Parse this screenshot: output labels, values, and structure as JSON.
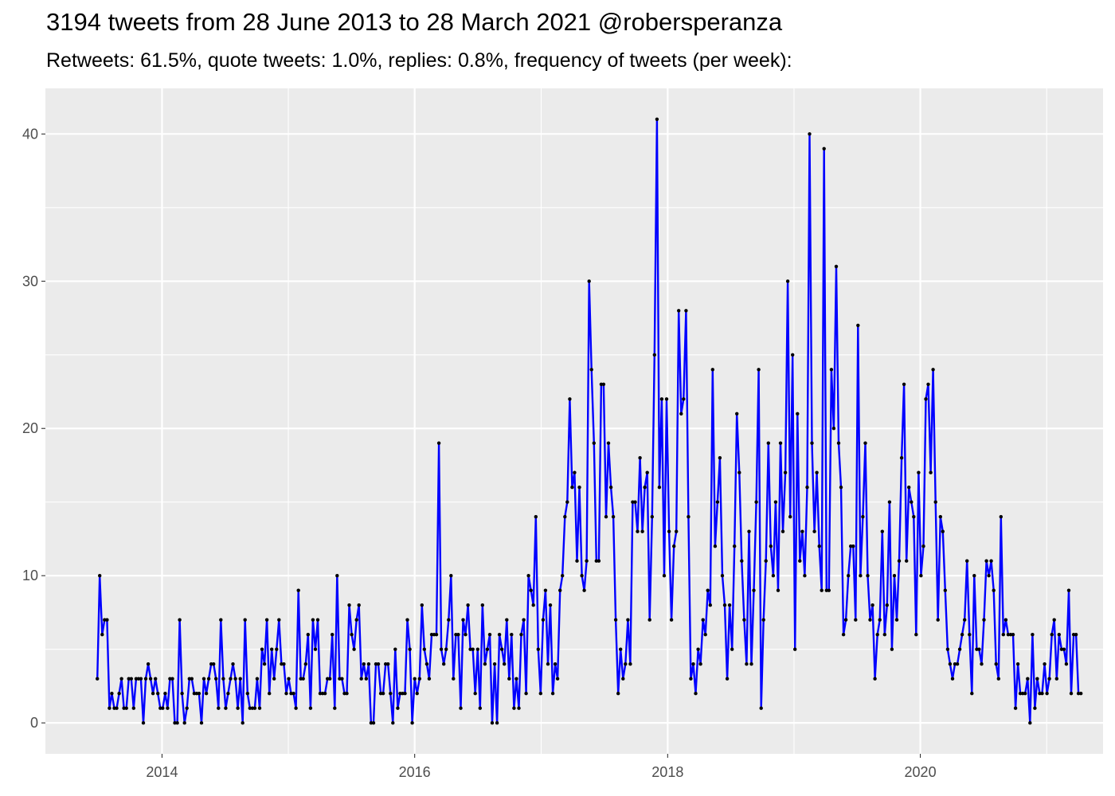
{
  "chart_data": {
    "type": "line",
    "title": "3194 tweets from 28 June 2013 to 28 March 2021 @robersperanza",
    "subtitle": "Retweets: 61.5%, quote tweets: 1.0%, replies: 0.8%, frequency of tweets (per week):",
    "xlabel": "",
    "ylabel": "",
    "x_start": "2013-06-28",
    "x_step_days": 7,
    "xlim": [
      "2013-01-29",
      "2021-06-12"
    ],
    "ylim": [
      -2.1,
      43.1
    ],
    "x_ticks": [
      {
        "label": "2014",
        "date": "2014-01-01"
      },
      {
        "label": "2016",
        "date": "2016-01-01"
      },
      {
        "label": "2018",
        "date": "2018-01-01"
      },
      {
        "label": "2020",
        "date": "2020-01-01"
      }
    ],
    "y_ticks": [
      0,
      10,
      20,
      30,
      40
    ],
    "grid": true,
    "line_color": "#0000ff",
    "point_color": "#000000",
    "panel_background": "#ebebeb",
    "series": [
      {
        "values": [
          3,
          10,
          6,
          7,
          7,
          1,
          2,
          1,
          1,
          2,
          3,
          1,
          1,
          3,
          3,
          1,
          3,
          3,
          3,
          0,
          3,
          4,
          3,
          2,
          3,
          2,
          1,
          1,
          2,
          1,
          3,
          3,
          0,
          0,
          7,
          2,
          0,
          1,
          3,
          3,
          2,
          2,
          2,
          0,
          3,
          2,
          3,
          4,
          4,
          3,
          1,
          7,
          3,
          1,
          2,
          3,
          4,
          3,
          1,
          3,
          0,
          7,
          2,
          1,
          1,
          1,
          3,
          1,
          5,
          4,
          7,
          2,
          5,
          3,
          5,
          7,
          4,
          4,
          2,
          3,
          2,
          2,
          1,
          9,
          3,
          3,
          4,
          6,
          1,
          7,
          5,
          7,
          2,
          2,
          2,
          3,
          3,
          6,
          1,
          10,
          3,
          3,
          2,
          2,
          8,
          6,
          5,
          7,
          8,
          3,
          4,
          3,
          4,
          0,
          0,
          4,
          4,
          2,
          2,
          4,
          4,
          2,
          0,
          5,
          1,
          2,
          2,
          2,
          7,
          5,
          0,
          3,
          2,
          3,
          8,
          5,
          4,
          3,
          6,
          6,
          6,
          19,
          5,
          4,
          5,
          7,
          10,
          3,
          6,
          6,
          1,
          7,
          6,
          8,
          5,
          5,
          2,
          5,
          1,
          8,
          4,
          5,
          6,
          0,
          4,
          0,
          6,
          5,
          4,
          7,
          3,
          6,
          1,
          3,
          1,
          6,
          7,
          2,
          10,
          9,
          8,
          14,
          5,
          2,
          7,
          9,
          4,
          8,
          2,
          4,
          3,
          9,
          10,
          14,
          15,
          22,
          16,
          17,
          11,
          16,
          10,
          9,
          11,
          30,
          24,
          19,
          11,
          11,
          23,
          23,
          14,
          19,
          16,
          14,
          7,
          2,
          5,
          3,
          4,
          7,
          4,
          15,
          15,
          13,
          18,
          13,
          16,
          17,
          7,
          14,
          25,
          41,
          16,
          22,
          10,
          22,
          13,
          7,
          12,
          13,
          28,
          21,
          22,
          28,
          14,
          3,
          4,
          2,
          5,
          4,
          7,
          6,
          9,
          8,
          24,
          12,
          15,
          18,
          10,
          8,
          3,
          8,
          5,
          12,
          21,
          17,
          11,
          7,
          4,
          13,
          4,
          9,
          15,
          24,
          1,
          7,
          11,
          19,
          12,
          10,
          15,
          9,
          19,
          13,
          17,
          30,
          14,
          25,
          5,
          21,
          11,
          13,
          10,
          16,
          40,
          19,
          13,
          17,
          12,
          9,
          39,
          9,
          9,
          24,
          20,
          31,
          19,
          16,
          6,
          7,
          10,
          12,
          12,
          7,
          27,
          10,
          14,
          19,
          10,
          7,
          8,
          3,
          6,
          7,
          13,
          6,
          8,
          15,
          5,
          10,
          7,
          11,
          18,
          23,
          11,
          16,
          15,
          14,
          6,
          17,
          10,
          12,
          22,
          23,
          17,
          24,
          15,
          7,
          14,
          13,
          9,
          5,
          4,
          3,
          4,
          4,
          5,
          6,
          7,
          11,
          6,
          2,
          10,
          5,
          5,
          4,
          7,
          11,
          10,
          11,
          9,
          4,
          3,
          14,
          6,
          7,
          6,
          6,
          6,
          1,
          4,
          2,
          2,
          2,
          3,
          0,
          6,
          1,
          3,
          2,
          2,
          4,
          2,
          3,
          6,
          7,
          3,
          6,
          5,
          5,
          4,
          9,
          2,
          6,
          6,
          2,
          2
        ]
      }
    ]
  }
}
